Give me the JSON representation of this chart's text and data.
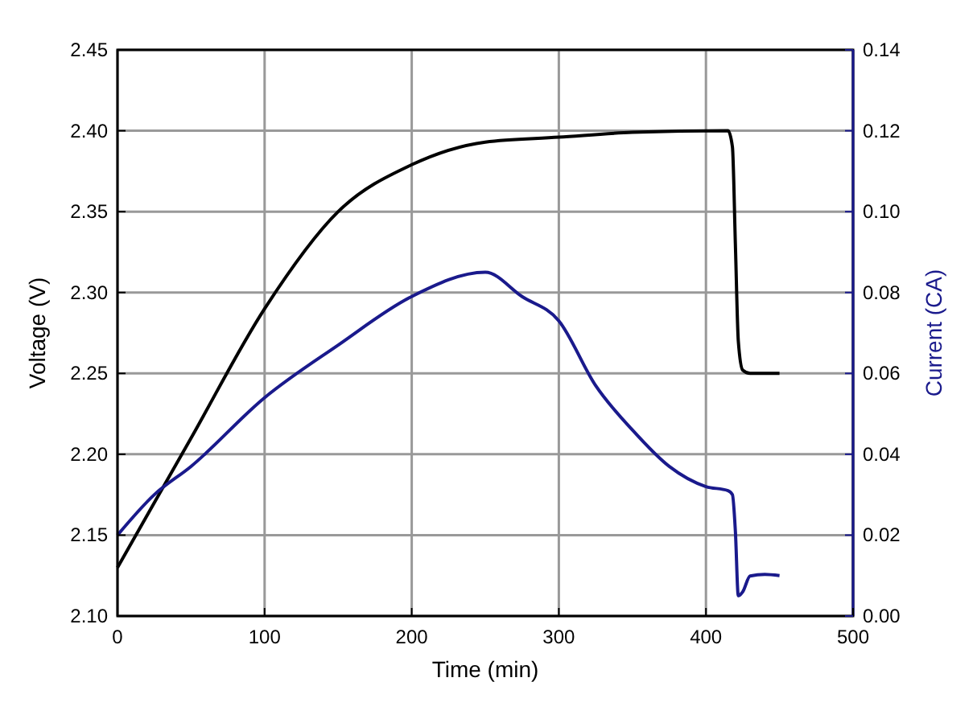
{
  "chart_data": {
    "type": "line",
    "xlabel": "Time (min)",
    "ylabel": "Voltage (V)",
    "y2label": "Current (CA)",
    "xlim": [
      0,
      500
    ],
    "xticks": [
      0,
      100,
      200,
      300,
      400,
      500
    ],
    "ylim": [
      2.1,
      2.45
    ],
    "yticks": [
      {
        "value": 2.1,
        "label": "2.10"
      },
      {
        "value": 2.15,
        "label": "2.15"
      },
      {
        "value": 2.2,
        "label": "2.20"
      },
      {
        "value": 2.25,
        "label": "2.25"
      },
      {
        "value": 2.3,
        "label": "2.30"
      },
      {
        "value": 2.35,
        "label": "2.35"
      },
      {
        "value": 2.4,
        "label": "2.40"
      },
      {
        "value": 2.45,
        "label": "2.45"
      }
    ],
    "y2lim": [
      0,
      0.14
    ],
    "y2ticks": [
      {
        "value": 0,
        "label": "0.00"
      },
      {
        "value": 0.02,
        "label": "0.02"
      },
      {
        "value": 0.04,
        "label": "0.04"
      },
      {
        "value": 0.06,
        "label": "0.06"
      },
      {
        "value": 0.08,
        "label": "0.08"
      },
      {
        "value": 0.1,
        "label": "0.10"
      },
      {
        "value": 0.12,
        "label": "0.12"
      },
      {
        "value": 0.14,
        "label": "0.14"
      }
    ],
    "grid": true,
    "marker": "none",
    "line_style": "solid",
    "series": [
      {
        "color": "#000000",
        "x": [
          0,
          50,
          100,
          150,
          200,
          250,
          300,
          350,
          415,
          418,
          420,
          422,
          425,
          430,
          450
        ],
        "values": [
          2.13,
          2.21,
          2.29,
          2.35,
          2.379,
          2.393,
          2.396,
          2.399,
          2.4,
          2.39,
          2.33,
          2.27,
          2.252,
          2.25,
          2.25
        ]
      },
      {
        "color": "#1a1a8c",
        "axis": "y2",
        "x": [
          0,
          25,
          50,
          100,
          150,
          200,
          250,
          275,
          300,
          325,
          350,
          375,
          400,
          415,
          418,
          420,
          422,
          425,
          430,
          440,
          450
        ],
        "values": [
          0.02,
          0.03,
          0.037,
          0.054,
          0.067,
          0.079,
          0.085,
          0.079,
          0.073,
          0.057,
          0.046,
          0.037,
          0.032,
          0.031,
          0.03,
          0.021,
          0.005,
          0.006,
          0.0099,
          0.0103,
          0.01
        ]
      }
    ]
  }
}
